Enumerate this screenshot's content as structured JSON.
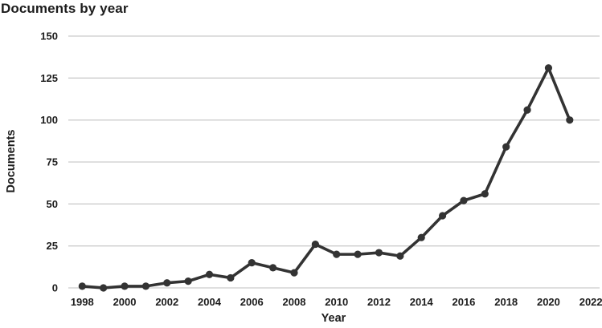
{
  "chart": {
    "title": "Documents by year",
    "xlabel": "Year",
    "ylabel": "Documents"
  },
  "chart_data": {
    "type": "line",
    "title": "Documents by year",
    "xlabel": "Year",
    "ylabel": "Documents",
    "x": [
      1998,
      1999,
      2000,
      2001,
      2002,
      2003,
      2004,
      2005,
      2006,
      2007,
      2008,
      2009,
      2010,
      2011,
      2012,
      2013,
      2014,
      2015,
      2016,
      2017,
      2018,
      2019,
      2020,
      2021
    ],
    "values": [
      1,
      0,
      1,
      1,
      3,
      4,
      8,
      6,
      15,
      12,
      9,
      26,
      20,
      20,
      21,
      19,
      30,
      43,
      52,
      56,
      84,
      106,
      131,
      100
    ],
    "ylim": [
      0,
      150
    ],
    "yticks": [
      0,
      25,
      50,
      75,
      100,
      125,
      150
    ],
    "xticks": [
      1998,
      2000,
      2002,
      2004,
      2006,
      2008,
      2010,
      2012,
      2014,
      2016,
      2018,
      2020,
      2022
    ],
    "grid": "horizontal",
    "legend": "none",
    "marker": "circle",
    "line_color": "#333333",
    "marker_color": "#333333",
    "gridline_color": "#cccccc",
    "text_color": "#1c1c1c",
    "background_color": "#ffffff"
  }
}
